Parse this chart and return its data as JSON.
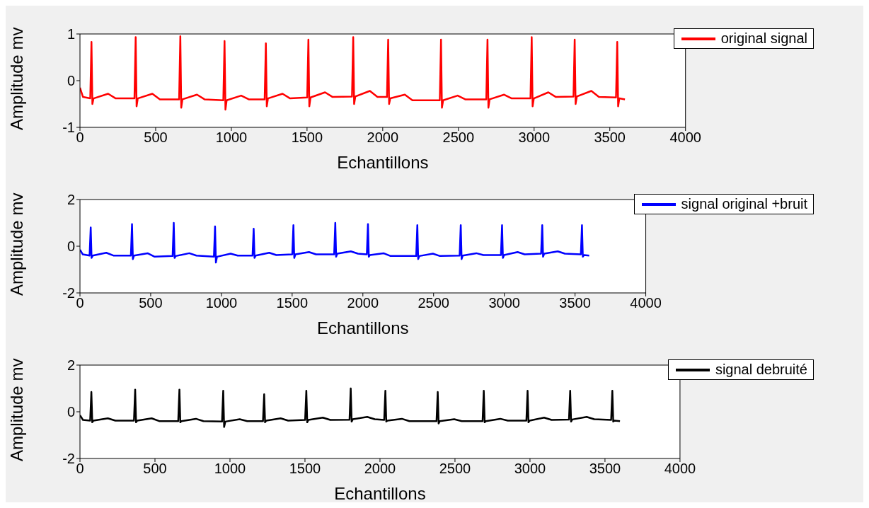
{
  "chart_data": [
    {
      "type": "line",
      "xlabel": "Echantillons",
      "ylabel": "Amplitude mv",
      "xlim": [
        0,
        4000
      ],
      "xticks": [
        0,
        500,
        1000,
        1500,
        2000,
        2500,
        3000,
        3500,
        4000
      ],
      "ylim": [
        -1,
        1
      ],
      "yticks": [
        -1,
        0,
        1
      ],
      "legend": "top right",
      "x": [
        0,
        20,
        68,
        76,
        82,
        90,
        186,
        236,
        360,
        368,
        374,
        382,
        478,
        528,
        655,
        663,
        669,
        677,
        773,
        823,
        947,
        955,
        961,
        969,
        1065,
        1115,
        1220,
        1228,
        1234,
        1242,
        1338,
        1388,
        1501,
        1509,
        1515,
        1523,
        1619,
        1669,
        1797,
        1805,
        1811,
        1819,
        1915,
        1965,
        2028,
        2036,
        2042,
        2050,
        2146,
        2196,
        2377,
        2385,
        2391,
        2399,
        2495,
        2545,
        2684,
        2692,
        2698,
        2706,
        2802,
        2852,
        2976,
        2984,
        2990,
        2998,
        3094,
        3144,
        3260,
        3268,
        3274,
        3282,
        3378,
        3428,
        3541,
        3549,
        3555,
        3563,
        3600
      ],
      "series": [
        {
          "name": "original signal",
          "color": "#ff0000",
          "values": [
            -0.15,
            -0.35,
            -0.38,
            0.83,
            -0.5,
            -0.38,
            -0.28,
            -0.38,
            -0.38,
            0.93,
            -0.55,
            -0.38,
            -0.28,
            -0.4,
            -0.4,
            0.95,
            -0.58,
            -0.4,
            -0.3,
            -0.4,
            -0.42,
            0.85,
            -0.62,
            -0.42,
            -0.32,
            -0.4,
            -0.4,
            0.8,
            -0.55,
            -0.38,
            -0.28,
            -0.38,
            -0.36,
            0.88,
            -0.55,
            -0.36,
            -0.25,
            -0.35,
            -0.34,
            0.93,
            -0.5,
            -0.34,
            -0.22,
            -0.35,
            -0.35,
            0.88,
            -0.5,
            -0.38,
            -0.3,
            -0.42,
            -0.42,
            0.88,
            -0.58,
            -0.42,
            -0.32,
            -0.4,
            -0.4,
            0.88,
            -0.58,
            -0.4,
            -0.3,
            -0.38,
            -0.38,
            0.93,
            -0.55,
            -0.38,
            -0.25,
            -0.35,
            -0.34,
            0.88,
            -0.5,
            -0.34,
            -0.22,
            -0.35,
            -0.36,
            0.83,
            -0.55,
            -0.38,
            -0.4
          ]
        }
      ]
    },
    {
      "type": "line",
      "xlabel": "Echantillons",
      "ylabel": "Amplitude mv",
      "xlim": [
        0,
        4000
      ],
      "xticks": [
        0,
        500,
        1000,
        1500,
        2000,
        2500,
        3000,
        3500,
        4000
      ],
      "ylim": [
        -2,
        2
      ],
      "yticks": [
        -2,
        0,
        2
      ],
      "legend": "top right",
      "x": [
        0,
        20,
        68,
        76,
        82,
        90,
        186,
        236,
        360,
        368,
        374,
        382,
        478,
        528,
        655,
        663,
        669,
        677,
        773,
        823,
        947,
        955,
        961,
        969,
        1065,
        1115,
        1220,
        1228,
        1234,
        1242,
        1338,
        1388,
        1501,
        1509,
        1515,
        1523,
        1619,
        1669,
        1797,
        1805,
        1811,
        1819,
        1915,
        1965,
        2028,
        2036,
        2042,
        2050,
        2146,
        2196,
        2377,
        2385,
        2391,
        2399,
        2495,
        2545,
        2684,
        2692,
        2698,
        2706,
        2802,
        2852,
        2976,
        2984,
        2990,
        2998,
        3094,
        3144,
        3260,
        3268,
        3274,
        3282,
        3378,
        3428,
        3541,
        3549,
        3555,
        3563,
        3600
      ],
      "series": [
        {
          "name": "signal original +bruit",
          "color": "#0000ff",
          "values": [
            -0.15,
            -0.35,
            -0.4,
            0.8,
            -0.5,
            -0.4,
            -0.28,
            -0.4,
            -0.4,
            0.95,
            -0.55,
            -0.4,
            -0.3,
            -0.45,
            -0.42,
            1.0,
            -0.5,
            -0.42,
            -0.3,
            -0.4,
            -0.45,
            0.85,
            -0.7,
            -0.45,
            -0.32,
            -0.4,
            -0.4,
            0.75,
            -0.5,
            -0.4,
            -0.28,
            -0.38,
            -0.35,
            0.9,
            -0.5,
            -0.35,
            -0.25,
            -0.35,
            -0.35,
            1.0,
            -0.45,
            -0.32,
            -0.22,
            -0.32,
            -0.35,
            0.95,
            -0.45,
            -0.38,
            -0.3,
            -0.42,
            -0.42,
            0.9,
            -0.55,
            -0.42,
            -0.32,
            -0.42,
            -0.4,
            0.9,
            -0.55,
            -0.4,
            -0.3,
            -0.38,
            -0.38,
            0.9,
            -0.5,
            -0.38,
            -0.25,
            -0.35,
            -0.32,
            0.9,
            -0.45,
            -0.32,
            -0.22,
            -0.32,
            -0.35,
            0.9,
            -0.45,
            -0.38,
            -0.4
          ]
        }
      ]
    },
    {
      "type": "line",
      "xlabel": "Echantillons",
      "ylabel": "Amplitude mv",
      "xlim": [
        0,
        4000
      ],
      "xticks": [
        0,
        500,
        1000,
        1500,
        2000,
        2500,
        3000,
        3500,
        4000
      ],
      "ylim": [
        -2,
        2
      ],
      "yticks": [
        -2,
        0,
        2
      ],
      "legend": "top right",
      "x": [
        0,
        20,
        68,
        76,
        82,
        90,
        186,
        236,
        360,
        368,
        374,
        382,
        478,
        528,
        655,
        663,
        669,
        677,
        773,
        823,
        947,
        955,
        961,
        969,
        1065,
        1115,
        1220,
        1228,
        1234,
        1242,
        1338,
        1388,
        1501,
        1509,
        1515,
        1523,
        1619,
        1669,
        1797,
        1805,
        1811,
        1819,
        1915,
        1965,
        2028,
        2036,
        2042,
        2050,
        2146,
        2196,
        2377,
        2385,
        2391,
        2399,
        2495,
        2545,
        2684,
        2692,
        2698,
        2706,
        2802,
        2852,
        2976,
        2984,
        2990,
        2998,
        3094,
        3144,
        3260,
        3268,
        3274,
        3282,
        3378,
        3428,
        3541,
        3549,
        3555,
        3563,
        3600
      ],
      "series": [
        {
          "name": "signal debruité",
          "color": "#000000",
          "values": [
            -0.15,
            -0.35,
            -0.38,
            0.85,
            -0.45,
            -0.38,
            -0.28,
            -0.38,
            -0.38,
            0.95,
            -0.45,
            -0.38,
            -0.28,
            -0.4,
            -0.4,
            0.95,
            -0.45,
            -0.4,
            -0.3,
            -0.4,
            -0.42,
            0.9,
            -0.65,
            -0.42,
            -0.32,
            -0.4,
            -0.4,
            0.75,
            -0.45,
            -0.38,
            -0.28,
            -0.38,
            -0.35,
            0.9,
            -0.45,
            -0.35,
            -0.25,
            -0.35,
            -0.34,
            1.0,
            -0.42,
            -0.32,
            -0.22,
            -0.32,
            -0.35,
            0.9,
            -0.42,
            -0.38,
            -0.3,
            -0.4,
            -0.4,
            0.85,
            -0.5,
            -0.4,
            -0.32,
            -0.4,
            -0.4,
            0.9,
            -0.45,
            -0.4,
            -0.3,
            -0.38,
            -0.38,
            0.9,
            -0.45,
            -0.38,
            -0.25,
            -0.35,
            -0.33,
            0.9,
            -0.42,
            -0.33,
            -0.22,
            -0.32,
            -0.35,
            0.9,
            -0.42,
            -0.38,
            -0.4
          ]
        }
      ]
    }
  ]
}
